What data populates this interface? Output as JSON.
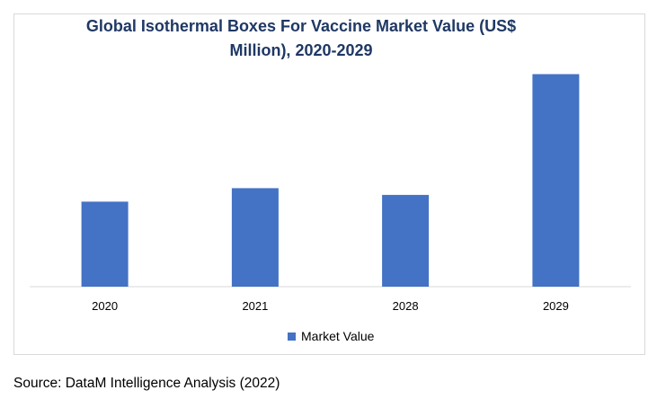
{
  "chart_data": {
    "type": "bar",
    "title": "Global Isothermal Boxes For Vaccine Market Value (US$ Million), 2020-2029",
    "categories": [
      "2020",
      "2021",
      "2028",
      "2029"
    ],
    "series": [
      {
        "name": "Market Value",
        "values": [
          38,
          44,
          41,
          95
        ],
        "color": "#4472c4"
      }
    ],
    "xlabel": "",
    "ylabel": "",
    "ylim": [
      0,
      100
    ],
    "grid": false,
    "legend": "bottom"
  },
  "source": "Source: DataM Intelligence Analysis (2022)"
}
